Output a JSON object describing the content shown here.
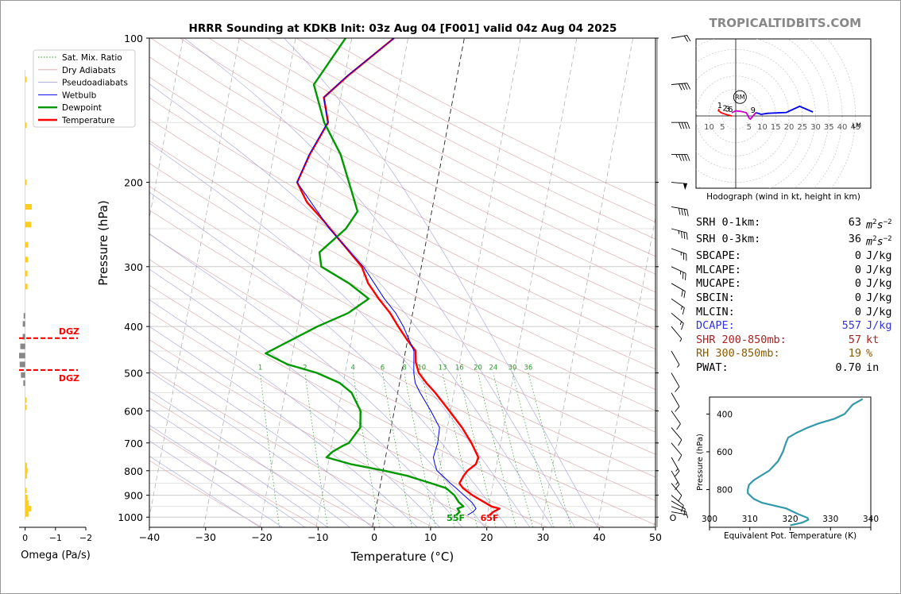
{
  "title": "HRRR Sounding at KDKB Init: 03z Aug 04 [F001] valid 04z Aug 04 2025",
  "watermark": "TROPICALTIDBITS.COM",
  "chart_data": [
    {
      "type": "line",
      "name": "skew-t",
      "xlabel": "Temperature (°C)",
      "ylabel": "Pressure (hPa)",
      "xlim": [
        -40,
        50
      ],
      "ylim": [
        1050,
        100
      ],
      "y_scale": "log",
      "xticks": [
        -40,
        -30,
        -20,
        -10,
        0,
        10,
        20,
        30,
        40,
        50
      ],
      "xtick_labels": [
        "−40",
        "−30",
        "−20",
        "−10",
        "0",
        "10",
        "20",
        "30",
        "40",
        "50"
      ],
      "yticks": [
        100,
        200,
        300,
        400,
        500,
        600,
        700,
        800,
        900,
        1000
      ],
      "grid": true,
      "legend_position": "upper-left",
      "legend": [
        "Sat. Mix. Ratio",
        "Dry Adiabats",
        "Pseudoadiabats",
        "Wetbulb",
        "Dewpoint",
        "Temperature"
      ],
      "series": [
        {
          "name": "Temperature",
          "color": "#ff0000",
          "points": [
            [
              990,
              20.4
            ],
            [
              975,
              21.0
            ],
            [
              960,
              22.0
            ],
            [
              950,
              20.5
            ],
            [
              930,
              19.0
            ],
            [
              900,
              16.7
            ],
            [
              870,
              14.8
            ],
            [
              850,
              14.0
            ],
            [
              820,
              14.5
            ],
            [
              800,
              15.0
            ],
            [
              775,
              16.3
            ],
            [
              750,
              16.5
            ],
            [
              700,
              14.8
            ],
            [
              650,
              12.6
            ],
            [
              600,
              9.8
            ],
            [
              550,
              6.7
            ],
            [
              525,
              4.8
            ],
            [
              500,
              3.1
            ],
            [
              475,
              2.2
            ],
            [
              450,
              1.8
            ],
            [
              425,
              -0.2
            ],
            [
              400,
              -2.1
            ],
            [
              375,
              -4.0
            ],
            [
              350,
              -6.5
            ],
            [
              325,
              -8.9
            ],
            [
              300,
              -10.6
            ],
            [
              280,
              -13.2
            ],
            [
              260,
              -16.0
            ],
            [
              240,
              -19.0
            ],
            [
              220,
              -22.5
            ],
            [
              200,
              -24.9
            ],
            [
              175,
              -23.6
            ],
            [
              150,
              -21.4
            ],
            [
              133,
              -23.0
            ],
            [
              120,
              -19.5
            ],
            [
              100,
              -12.5
            ]
          ]
        },
        {
          "name": "Dewpoint",
          "color": "#009900",
          "points": [
            [
              990,
              14.5
            ],
            [
              975,
              15.0
            ],
            [
              960,
              14.5
            ],
            [
              950,
              15.5
            ],
            [
              930,
              14.5
            ],
            [
              900,
              13.5
            ],
            [
              870,
              11.8
            ],
            [
              850,
              9.0
            ],
            [
              820,
              4.5
            ],
            [
              800,
              0.3
            ],
            [
              775,
              -6.0
            ],
            [
              750,
              -10.5
            ],
            [
              730,
              -9.6
            ],
            [
              710,
              -8.0
            ],
            [
              700,
              -7.0
            ],
            [
              650,
              -5.5
            ],
            [
              600,
              -6.0
            ],
            [
              550,
              -8.2
            ],
            [
              525,
              -10.6
            ],
            [
              500,
              -15.0
            ],
            [
              480,
              -20.5
            ],
            [
              455,
              -24.8
            ],
            [
              400,
              -16.5
            ],
            [
              375,
              -11.5
            ],
            [
              350,
              -8.3
            ],
            [
              325,
              -12.3
            ],
            [
              300,
              -17.8
            ],
            [
              280,
              -18.6
            ],
            [
              250,
              -14.7
            ],
            [
              230,
              -13.2
            ],
            [
              200,
              -15.7
            ],
            [
              175,
              -18.1
            ],
            [
              150,
              -22.1
            ],
            [
              125,
              -25.2
            ],
            [
              100,
              -21.1
            ]
          ]
        },
        {
          "name": "Wetbulb",
          "color": "#0000ee",
          "points": [
            [
              990,
              16.5
            ],
            [
              975,
              17.4
            ],
            [
              960,
              17.8
            ],
            [
              950,
              17.5
            ],
            [
              930,
              16.8
            ],
            [
              900,
              15.2
            ],
            [
              870,
              13.6
            ],
            [
              850,
              12.4
            ],
            [
              820,
              10.8
            ],
            [
              800,
              9.6
            ],
            [
              775,
              9.0
            ],
            [
              750,
              8.5
            ],
            [
              700,
              8.8
            ],
            [
              650,
              8.6
            ],
            [
              600,
              6.5
            ],
            [
              550,
              4.0
            ],
            [
              525,
              2.8
            ],
            [
              500,
              2.2
            ],
            [
              450,
              1.5
            ],
            [
              400,
              -1.2
            ],
            [
              375,
              -3.0
            ],
            [
              350,
              -5.5
            ],
            [
              300,
              -10.3
            ],
            [
              250,
              -17.6
            ],
            [
              200,
              -24.9
            ],
            [
              175,
              -23.7
            ],
            [
              150,
              -21.5
            ],
            [
              133,
              -23.0
            ],
            [
              120,
              -19.6
            ],
            [
              100,
              -12.5
            ]
          ]
        }
      ],
      "annotations": [
        {
          "text": "55F",
          "color": "#009900",
          "x": 14.5,
          "p": 1003
        },
        {
          "text": "65F",
          "color": "#ff0000",
          "x": 20.5,
          "p": 1003
        }
      ],
      "mixing_ratio_labels": [
        "1",
        "2",
        "4",
        "6",
        "8",
        "10",
        "13",
        "16",
        "20",
        "24",
        "30",
        "36"
      ]
    },
    {
      "type": "bar",
      "name": "omega",
      "xlabel": "Omega (Pa/s)",
      "xlim": [
        0.2,
        -2
      ],
      "xticks": [
        0,
        -1,
        -2
      ],
      "xtick_labels": [
        "0",
        "−1",
        "−2"
      ],
      "dgz_label": "DGZ",
      "dgz_pressures": [
        423,
        493
      ],
      "bars": [
        {
          "p": 122,
          "v": -0.05
        },
        {
          "p": 152,
          "v": -0.05
        },
        {
          "p": 200,
          "v": -0.05
        },
        {
          "p": 225,
          "v": -0.22
        },
        {
          "p": 245,
          "v": -0.2
        },
        {
          "p": 270,
          "v": -0.1
        },
        {
          "p": 290,
          "v": -0.1
        },
        {
          "p": 310,
          "v": -0.08
        },
        {
          "p": 330,
          "v": -0.08
        },
        {
          "p": 380,
          "v": 0.05
        },
        {
          "p": 395,
          "v": 0.08
        },
        {
          "p": 420,
          "v": 0.08
        },
        {
          "p": 440,
          "v": 0.16
        },
        {
          "p": 460,
          "v": 0.2
        },
        {
          "p": 480,
          "v": 0.18
        },
        {
          "p": 505,
          "v": 0.14
        },
        {
          "p": 525,
          "v": 0.06
        },
        {
          "p": 570,
          "v": -0.05
        },
        {
          "p": 590,
          "v": -0.05
        },
        {
          "p": 780,
          "v": -0.06
        },
        {
          "p": 800,
          "v": -0.08
        },
        {
          "p": 820,
          "v": -0.06
        },
        {
          "p": 880,
          "v": -0.05
        },
        {
          "p": 910,
          "v": -0.08
        },
        {
          "p": 935,
          "v": -0.12
        },
        {
          "p": 960,
          "v": -0.2
        },
        {
          "p": 985,
          "v": -0.12
        }
      ]
    },
    {
      "type": "line",
      "name": "hodograph",
      "title": "Hodograph (wind in kt, height in km)",
      "rings": [
        5,
        10,
        15,
        20,
        25,
        30,
        35,
        40,
        45
      ],
      "ring_labels_left": [
        "10",
        "5"
      ],
      "ring_labels_right": [
        "5",
        "10",
        "15",
        "20",
        "25",
        "30",
        "35",
        "40",
        "45"
      ],
      "height_labels": [
        {
          "text": "1",
          "u": -6,
          "v": 3
        },
        {
          "text": "2",
          "u": -4,
          "v": 2
        },
        {
          "text": "3",
          "u": -3,
          "v": 1.6
        },
        {
          "text": "6",
          "u": -2,
          "v": 1.5
        },
        {
          "text": "9",
          "u": 6.5,
          "v": 1.2
        }
      ],
      "rm_label": "RM",
      "rm": [
        1,
        6.5
      ],
      "lm_label": "LM",
      "lm": [
        45,
        -2
      ],
      "segments": [
        {
          "color": "#ff0000",
          "points": [
            [
              -6.2,
              2.6
            ],
            [
              -6.5,
              2.0
            ],
            [
              -5.5,
              1.2
            ],
            [
              -3.5,
              0.5
            ],
            [
              -1.5,
              0
            ]
          ]
        },
        {
          "color": "#cc00cc",
          "points": [
            [
              -1.5,
              1.2
            ],
            [
              0,
              1.9
            ],
            [
              2,
              1.7
            ],
            [
              4,
              1.2
            ],
            [
              5,
              -0.8
            ],
            [
              5.5,
              -1.2
            ],
            [
              6.5,
              0
            ],
            [
              7.5,
              1.2
            ]
          ]
        },
        {
          "color": "#0000ee",
          "points": [
            [
              7.5,
              1.2
            ],
            [
              8.5,
              1
            ],
            [
              9.5,
              0.6
            ],
            [
              12,
              1
            ],
            [
              19,
              1.3
            ],
            [
              24,
              3.6
            ],
            [
              29,
              1.5
            ]
          ]
        }
      ]
    },
    {
      "type": "line",
      "name": "theta-e",
      "xlabel": "Equivalent Pot. Temperature (K)",
      "ylabel": "Pressure (hPa)",
      "xlim": [
        300,
        340
      ],
      "ylim": [
        1000,
        310
      ],
      "xticks": [
        300,
        310,
        320,
        330,
        340
      ],
      "yticks": [
        400,
        600,
        800
      ],
      "color": "#3399aa",
      "points": [
        [
          990,
          320
        ],
        [
          975,
          323
        ],
        [
          960,
          324.5
        ],
        [
          950,
          324.3
        ],
        [
          930,
          322
        ],
        [
          900,
          319
        ],
        [
          870,
          313
        ],
        [
          850,
          311
        ],
        [
          820,
          309.5
        ],
        [
          800,
          309.5
        ],
        [
          775,
          309.8
        ],
        [
          750,
          311
        ],
        [
          700,
          314.8
        ],
        [
          650,
          317
        ],
        [
          600,
          318.2
        ],
        [
          550,
          319
        ],
        [
          525,
          319.5
        ],
        [
          500,
          321.5
        ],
        [
          475,
          324
        ],
        [
          450,
          327
        ],
        [
          425,
          331
        ],
        [
          400,
          333.5
        ],
        [
          375,
          334.5
        ],
        [
          350,
          335.5
        ],
        [
          320,
          338
        ]
      ]
    }
  ],
  "params": [
    {
      "name": "SRH 0-1km:",
      "value": "63",
      "unit": "m2s-2",
      "color": "#000000"
    },
    {
      "name": "SRH 0-3km:",
      "value": "36",
      "unit": "m2s-2",
      "color": "#000000"
    },
    {
      "name": "SBCAPE:",
      "value": "0",
      "unit": "J/kg",
      "color": "#000000"
    },
    {
      "name": "MLCAPE:",
      "value": "0",
      "unit": "J/kg",
      "color": "#000000"
    },
    {
      "name": "MUCAPE:",
      "value": "0",
      "unit": "J/kg",
      "color": "#000000"
    },
    {
      "name": "SBCIN:",
      "value": "0",
      "unit": "J/kg",
      "color": "#000000"
    },
    {
      "name": "MLCIN:",
      "value": "0",
      "unit": "J/kg",
      "color": "#000000"
    },
    {
      "name": "DCAPE:",
      "value": "557",
      "unit": "J/kg",
      "color": "#3333dd"
    },
    {
      "name": "SHR 200-850mb:",
      "value": "57",
      "unit": "kt",
      "color": "#aa2222"
    },
    {
      "name": "RH 300-850mb:",
      "value": "19",
      "unit": "%",
      "color": "#8a5a00"
    },
    {
      "name": "PWAT:",
      "value": "0.70",
      "unit": "in",
      "color": "#000000"
    }
  ],
  "wind_barbs": [
    {
      "p": 100,
      "dir": 260,
      "spd": 20
    },
    {
      "p": 125,
      "dir": 265,
      "spd": 40
    },
    {
      "p": 150,
      "dir": 270,
      "spd": 40
    },
    {
      "p": 175,
      "dir": 270,
      "spd": 45
    },
    {
      "p": 200,
      "dir": 275,
      "spd": 50
    },
    {
      "p": 225,
      "dir": 280,
      "spd": 40
    },
    {
      "p": 250,
      "dir": 285,
      "spd": 35
    },
    {
      "p": 275,
      "dir": 290,
      "spd": 25
    },
    {
      "p": 300,
      "dir": 295,
      "spd": 25
    },
    {
      "p": 325,
      "dir": 300,
      "spd": 20
    },
    {
      "p": 350,
      "dir": 305,
      "spd": 15
    },
    {
      "p": 375,
      "dir": 310,
      "spd": 15
    },
    {
      "p": 400,
      "dir": 320,
      "spd": 5
    },
    {
      "p": 450,
      "dir": 330,
      "spd": 5
    },
    {
      "p": 500,
      "dir": 330,
      "spd": 10
    },
    {
      "p": 550,
      "dir": 330,
      "spd": 10
    },
    {
      "p": 600,
      "dir": 325,
      "spd": 10
    },
    {
      "p": 650,
      "dir": 320,
      "spd": 10
    },
    {
      "p": 700,
      "dir": 320,
      "spd": 10
    },
    {
      "p": 750,
      "dir": 330,
      "spd": 15
    },
    {
      "p": 800,
      "dir": 330,
      "spd": 15
    },
    {
      "p": 850,
      "dir": 320,
      "spd": 10
    },
    {
      "p": 900,
      "dir": 310,
      "spd": 10
    },
    {
      "p": 925,
      "dir": 300,
      "spd": 10
    },
    {
      "p": 950,
      "dir": 290,
      "spd": 5
    },
    {
      "p": 975,
      "dir": 280,
      "spd": 5
    }
  ],
  "calm_marker": "O"
}
